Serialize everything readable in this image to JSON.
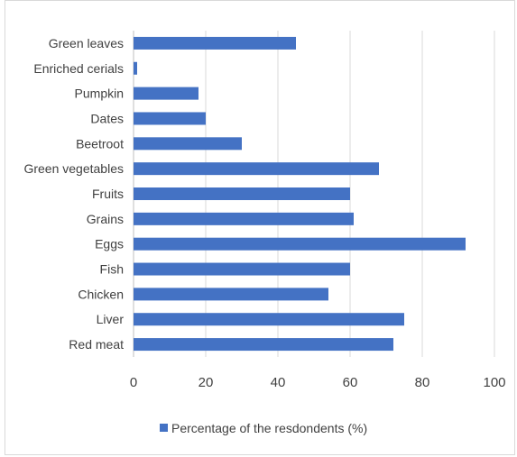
{
  "chart_data": {
    "type": "bar",
    "orientation": "horizontal",
    "categories": [
      "Green leaves",
      "Enriched cerials",
      "Pumpkin",
      "Dates",
      "Beetroot",
      "Green vegetables",
      "Fruits",
      "Grains",
      "Eggs",
      "Fish",
      "Chicken",
      "Liver",
      "Red meat"
    ],
    "series": [
      {
        "name": "Percentage of the resdondents (%)",
        "values": [
          45,
          1,
          18,
          20,
          30,
          68,
          60,
          61,
          92,
          60,
          54,
          75,
          72
        ],
        "color": "#4472c4"
      }
    ],
    "xlim": [
      0,
      100
    ],
    "x_ticks": [
      0,
      20,
      40,
      60,
      80,
      100
    ],
    "grid": true,
    "legend_position": "bottom"
  }
}
